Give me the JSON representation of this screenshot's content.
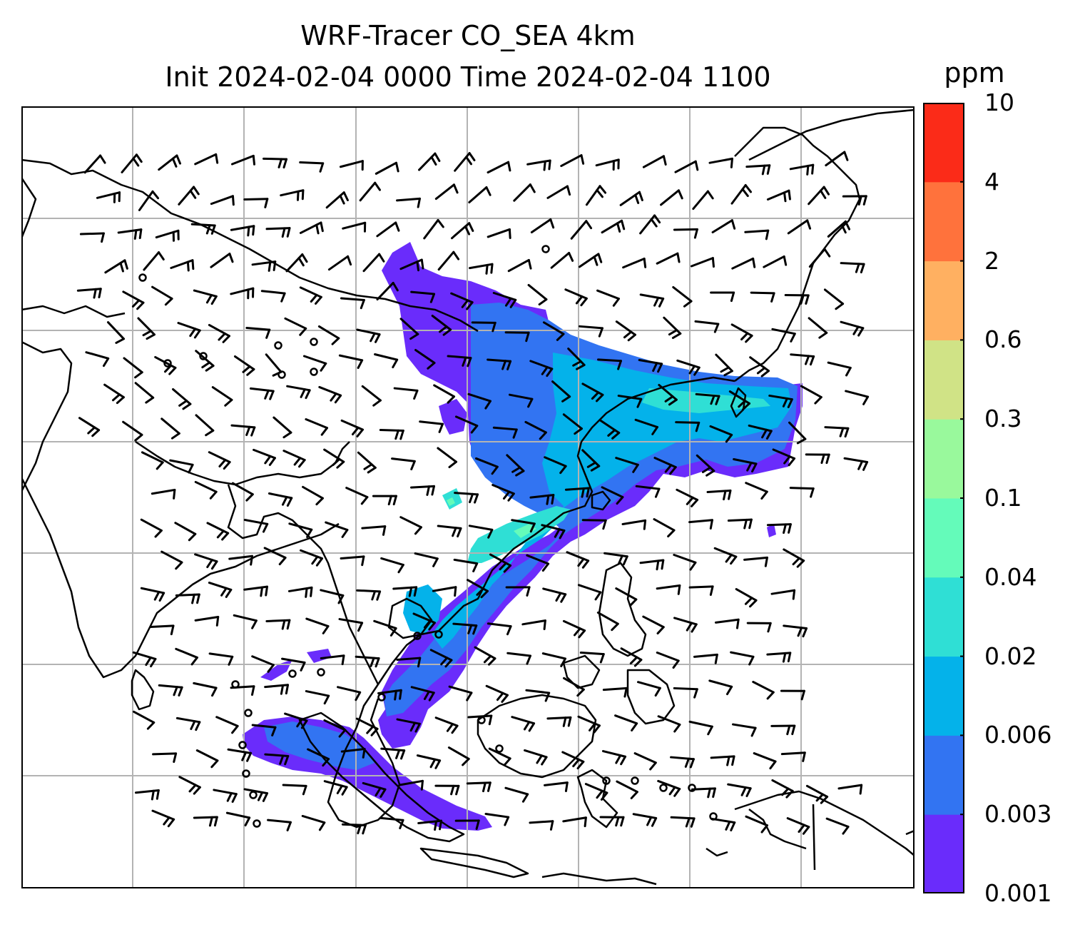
{
  "title": {
    "line1": "WRF-Tracer CO_SEA 4km",
    "line2": "Init 2024-02-04 0000 Time 2024-02-04 1100"
  },
  "colorbar": {
    "unit": "ppm",
    "ticks": [
      "0.001",
      "0.003",
      "0.006",
      "0.02",
      "0.04",
      "0.1",
      "0.3",
      "0.6",
      "2",
      "4",
      "10"
    ],
    "colors": [
      "#6a2cfb",
      "#3274f2",
      "#04b2ea",
      "#2fdfd5",
      "#64fbba",
      "#99f99c",
      "#d0e386",
      "#ffb061",
      "#ff723c",
      "#fb2b18"
    ]
  },
  "map": {
    "type": "contour-fill with wind barbs",
    "region": "Southeast Asia",
    "gridlines": true,
    "coastline_color": "#000000",
    "grid_color": "#b3b3b3"
  }
}
